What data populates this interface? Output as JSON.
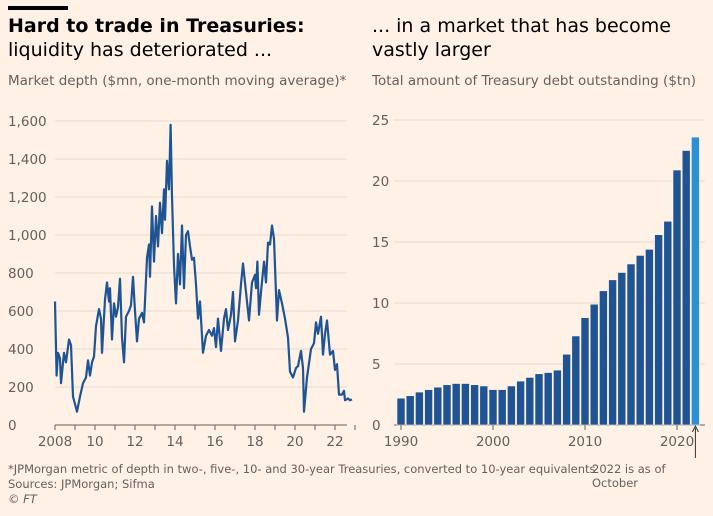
{
  "header": {
    "left_title_bold": "Hard to trade in Treasuries:",
    "left_title_rest": "liquidity has deteriorated ...",
    "right_title": "... in a market that has become vastly larger"
  },
  "colors": {
    "background": "#FFF1E5",
    "series": "#1F5494",
    "bar": "#1F5494",
    "bar_highlight": "#2A8FD4",
    "grid": "#E6D9CE"
  },
  "chart_data": [
    {
      "type": "line",
      "title": "Hard to trade in Treasuries: liquidity has deteriorated ...",
      "subtitle": "Market depth ($mn, one-month moving average)*",
      "xlabel": "",
      "ylabel": "",
      "xlim": [
        2008,
        2023.1
      ],
      "ylim": [
        0,
        1600
      ],
      "yticks": [
        0,
        200,
        400,
        600,
        800,
        1000,
        1200,
        1400,
        1600
      ],
      "ytick_labels": [
        "0",
        "200",
        "400",
        "600",
        "800",
        "1,000",
        "1,200",
        "1,400",
        "1,600"
      ],
      "xticks": [
        2008,
        2010,
        2012,
        2014,
        2016,
        2018,
        2020,
        2022
      ],
      "xtick_labels": [
        "2008",
        "10",
        "12",
        "14",
        "16",
        "18",
        "20",
        "22"
      ],
      "grid": true,
      "series": [
        {
          "name": "Market depth",
          "x": [
            2008.0,
            2008.08,
            2008.15,
            2008.25,
            2008.3,
            2008.45,
            2008.55,
            2008.7,
            2008.8,
            2008.9,
            2009.0,
            2009.1,
            2009.25,
            2009.4,
            2009.55,
            2009.65,
            2009.75,
            2009.85,
            2009.95,
            2010.05,
            2010.2,
            2010.3,
            2010.35,
            2010.5,
            2010.6,
            2010.7,
            2010.75,
            2010.85,
            2010.95,
            2011.05,
            2011.15,
            2011.25,
            2011.35,
            2011.45,
            2011.55,
            2011.7,
            2011.8,
            2011.9,
            2012.0,
            2012.1,
            2012.2,
            2012.35,
            2012.45,
            2012.6,
            2012.7,
            2012.75,
            2012.85,
            2012.95,
            2013.05,
            2013.15,
            2013.25,
            2013.35,
            2013.45,
            2013.5,
            2013.6,
            2013.7,
            2013.78,
            2013.85,
            2013.95,
            2014.05,
            2014.15,
            2014.25,
            2014.35,
            2014.45,
            2014.55,
            2014.65,
            2014.75,
            2014.85,
            2014.95,
            2015.05,
            2015.15,
            2015.25,
            2015.4,
            2015.55,
            2015.7,
            2015.85,
            2015.95,
            2016.05,
            2016.15,
            2016.3,
            2016.45,
            2016.55,
            2016.65,
            2016.8,
            2016.9,
            2017.0,
            2017.15,
            2017.3,
            2017.4,
            2017.55,
            2017.7,
            2017.85,
            2018.0,
            2018.05,
            2018.12,
            2018.2,
            2018.3,
            2018.45,
            2018.55,
            2018.65,
            2018.75,
            2018.85,
            2018.95,
            2019.1,
            2019.2,
            2019.35,
            2019.5,
            2019.65,
            2019.75,
            2019.9,
            2020.05,
            2020.15,
            2020.3,
            2020.4,
            2020.45,
            2020.6,
            2020.8,
            2020.95,
            2021.05,
            2021.15,
            2021.3,
            2021.4,
            2021.5,
            2021.6,
            2021.75,
            2021.9,
            2022.0,
            2022.1,
            2022.2,
            2022.35,
            2022.45,
            2022.5,
            2022.65,
            2022.75,
            2022.85
          ],
          "y": [
            650,
            260,
            380,
            350,
            220,
            380,
            330,
            450,
            420,
            150,
            110,
            70,
            150,
            220,
            250,
            340,
            260,
            330,
            360,
            520,
            610,
            560,
            380,
            660,
            750,
            650,
            720,
            450,
            640,
            570,
            620,
            770,
            460,
            330,
            570,
            600,
            630,
            780,
            600,
            440,
            560,
            590,
            540,
            880,
            950,
            780,
            1150,
            860,
            1100,
            940,
            1170,
            1010,
            1240,
            1080,
            1390,
            1240,
            1580,
            1200,
            840,
            640,
            900,
            740,
            1050,
            720,
            1000,
            1020,
            940,
            870,
            880,
            740,
            560,
            650,
            380,
            470,
            500,
            470,
            510,
            410,
            560,
            390,
            560,
            610,
            500,
            580,
            700,
            440,
            550,
            740,
            850,
            700,
            550,
            750,
            790,
            720,
            860,
            580,
            700,
            860,
            750,
            960,
            950,
            1050,
            980,
            550,
            710,
            640,
            560,
            460,
            280,
            250,
            300,
            310,
            390,
            300,
            70,
            250,
            400,
            430,
            540,
            480,
            570,
            370,
            480,
            550,
            370,
            390,
            290,
            320,
            160,
            160,
            180,
            130,
            140,
            130,
            135
          ]
        }
      ]
    },
    {
      "type": "bar",
      "title": "... in a market that has become vastly larger",
      "subtitle": "Total amount of Treasury debt outstanding ($tn)",
      "xlabel": "",
      "ylabel": "",
      "ylim": [
        0,
        25
      ],
      "yticks": [
        0,
        5,
        10,
        15,
        20,
        25
      ],
      "ytick_labels": [
        "0",
        "5",
        "10",
        "15",
        "20",
        "25"
      ],
      "xticks": [
        1990,
        2000,
        2010,
        2020
      ],
      "xtick_labels": [
        "1990",
        "2000",
        "2010",
        "2020"
      ],
      "grid": true,
      "categories": [
        1990,
        1991,
        1992,
        1993,
        1994,
        1995,
        1996,
        1997,
        1998,
        1999,
        2000,
        2001,
        2002,
        2003,
        2004,
        2005,
        2006,
        2007,
        2008,
        2009,
        2010,
        2011,
        2012,
        2013,
        2014,
        2015,
        2016,
        2017,
        2018,
        2019,
        2020,
        2021,
        2022
      ],
      "values": [
        2.2,
        2.4,
        2.7,
        2.9,
        3.1,
        3.3,
        3.4,
        3.4,
        3.3,
        3.2,
        2.9,
        2.9,
        3.2,
        3.6,
        3.9,
        4.2,
        4.3,
        4.5,
        5.8,
        7.3,
        8.8,
        9.9,
        11.0,
        11.9,
        12.5,
        13.2,
        13.9,
        14.4,
        15.6,
        16.7,
        20.9,
        22.5,
        23.6
      ],
      "highlight": [
        2022
      ],
      "annotations": [
        "2022 is as of October"
      ]
    }
  ],
  "footer": {
    "note": "*JPMorgan metric of depth in two-, five-, 10- and 30-year Treasuries, converted to 10-year equivalents",
    "sources": "Sources: JPMorgan; Sifma",
    "copyright": "© FT",
    "annotation": "2022 is as of October"
  }
}
